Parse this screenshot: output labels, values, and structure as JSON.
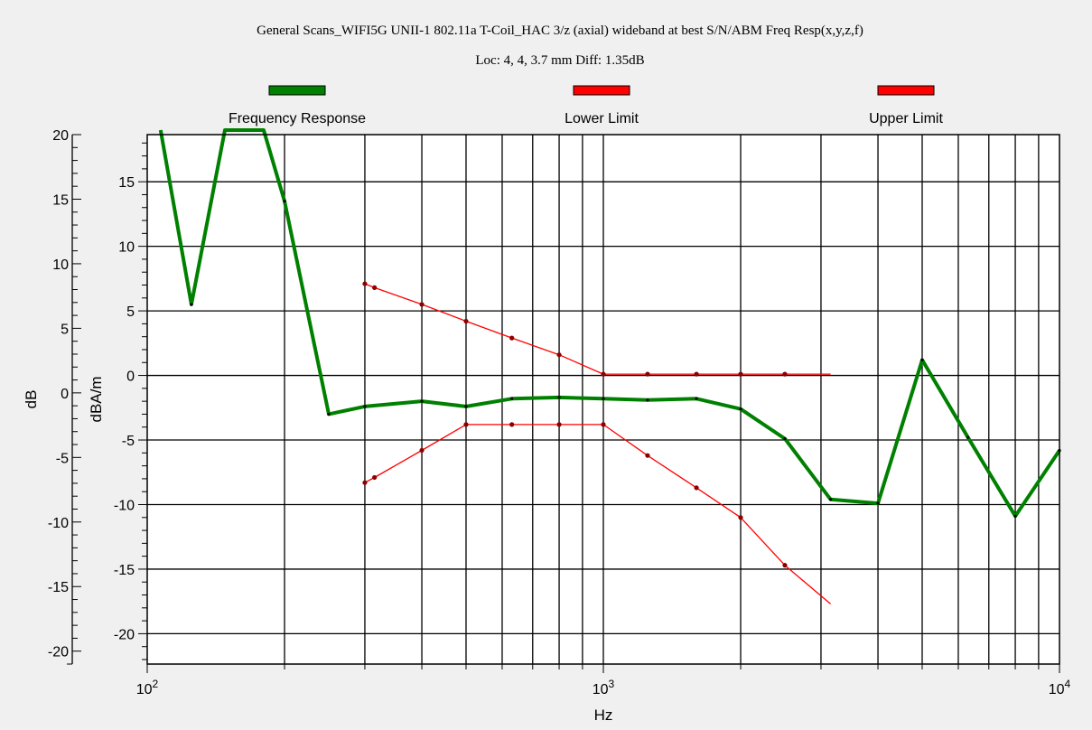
{
  "chart_data": {
    "type": "line",
    "title": "General Scans_WIFI5G UNII-1 802.11a T-Coil_HAC 3/z (axial) wideband at best S/N/ABM Freq Resp(x,y,z,f)",
    "subtitle": "Loc: 4, 4, 3.7 mm Diff: 1.35dB",
    "xlabel": "Hz",
    "x_scale": "log",
    "xlim": [
      100,
      10000
    ],
    "x_ticks": [
      {
        "value": 100,
        "base": "10",
        "exp": "2"
      },
      {
        "value": 1000,
        "base": "10",
        "exp": "3"
      },
      {
        "value": 10000,
        "base": "10",
        "exp": "4"
      }
    ],
    "grid": true,
    "legend_position": "top",
    "axes": [
      {
        "label": "dB",
        "ylim": [
          -21,
          20
        ],
        "ticks": [
          20,
          15,
          10,
          5,
          0,
          -5,
          -10,
          -15,
          -20
        ],
        "tick_labels": [
          "20",
          "15",
          "10",
          "5",
          "0",
          "-5",
          "-10",
          "-15",
          "-20"
        ]
      },
      {
        "label": "dBA/m",
        "ylim": [
          -22.35,
          18.65
        ],
        "ticks": [
          15,
          10,
          5,
          0,
          -5,
          -10,
          -15,
          -20
        ],
        "tick_labels": [
          "15",
          "10",
          "5",
          "0",
          "-5",
          "-10",
          "-15",
          "-20"
        ]
      }
    ],
    "series": [
      {
        "name": "Frequency Response",
        "color": "#008000",
        "axis": "dBA/m",
        "points": [
          [
            107,
            19
          ],
          [
            125,
            5.5
          ],
          [
            148,
            19
          ],
          [
            180,
            19
          ],
          [
            200,
            13.5
          ],
          [
            250,
            -3
          ],
          [
            300,
            -2.4
          ],
          [
            400,
            -2
          ],
          [
            500,
            -2.4
          ],
          [
            630,
            -1.8
          ],
          [
            800,
            -1.7
          ],
          [
            1000,
            -1.8
          ],
          [
            1250,
            -1.9
          ],
          [
            1600,
            -1.8
          ],
          [
            2000,
            -2.6
          ],
          [
            2500,
            -4.9
          ],
          [
            3150,
            -9.6
          ],
          [
            4000,
            -9.9
          ],
          [
            5000,
            1.2
          ],
          [
            6300,
            -4.8
          ],
          [
            8000,
            -10.9
          ],
          [
            10000,
            -5.8
          ]
        ]
      },
      {
        "name": "Lower Limit",
        "color": "#ff0000",
        "axis": "dBA/m",
        "points": [
          [
            300,
            -8.3
          ],
          [
            315,
            -7.9
          ],
          [
            400,
            -5.8
          ],
          [
            500,
            -3.8
          ],
          [
            630,
            -3.8
          ],
          [
            800,
            -3.8
          ],
          [
            1000,
            -3.8
          ],
          [
            1250,
            -6.2
          ],
          [
            1600,
            -8.7
          ],
          [
            2000,
            -11
          ],
          [
            2500,
            -14.7
          ],
          [
            3150,
            -17.7
          ]
        ]
      },
      {
        "name": "Upper Limit",
        "color": "#ff0000",
        "axis": "dBA/m",
        "points": [
          [
            300,
            7.1
          ],
          [
            315,
            6.8
          ],
          [
            400,
            5.5
          ],
          [
            500,
            4.2
          ],
          [
            630,
            2.9
          ],
          [
            800,
            1.6
          ],
          [
            1000,
            0.1
          ],
          [
            1250,
            0.1
          ],
          [
            1600,
            0.1
          ],
          [
            2000,
            0.1
          ],
          [
            2500,
            0.1
          ],
          [
            3150,
            0.1
          ]
        ]
      }
    ]
  }
}
